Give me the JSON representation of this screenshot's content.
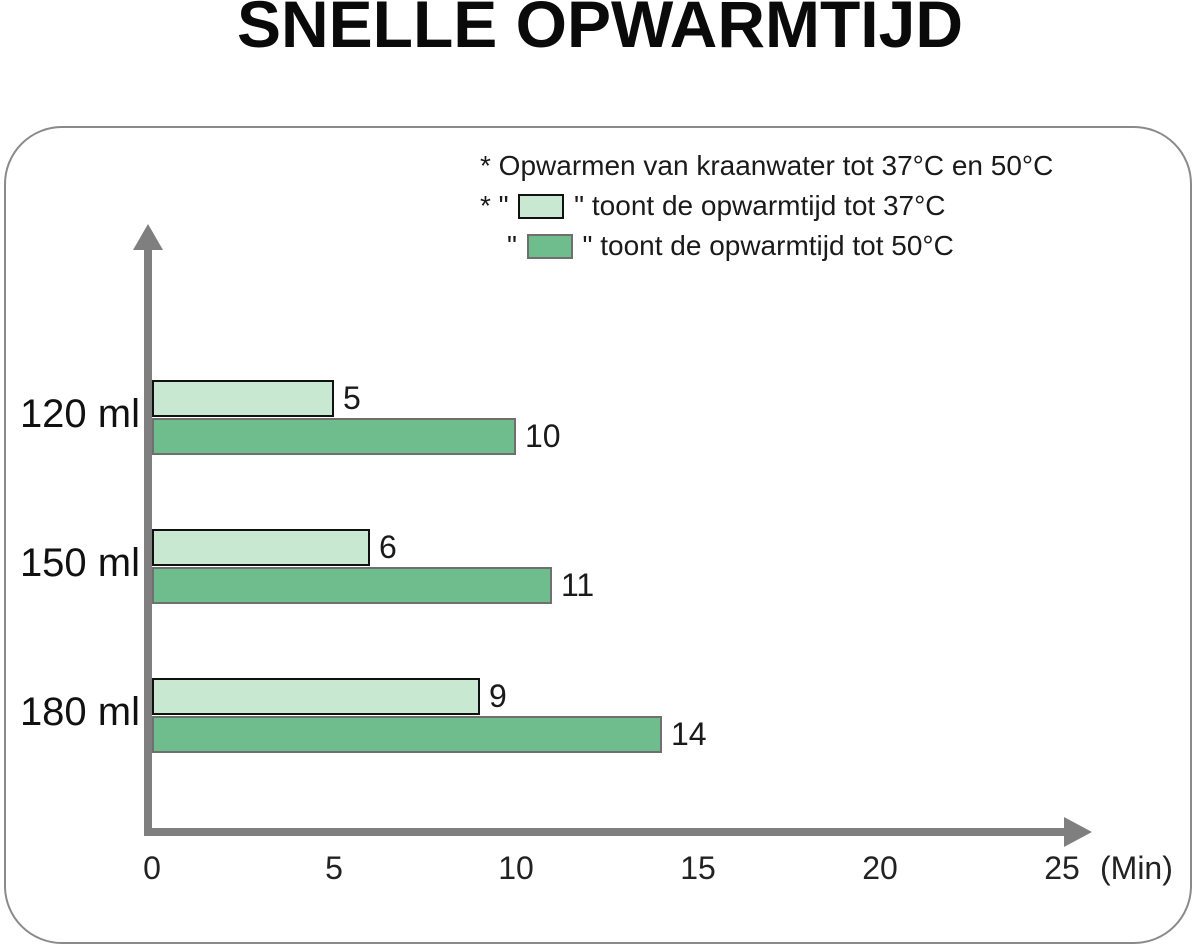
{
  "title": "SNELLE OPWARMTIJD",
  "legend": {
    "note": "* Opwarmen van kraanwater tot 37°C en 50°C",
    "item1_prefix": "* \" ",
    "item1_suffix": " \" toont de opwarmtijd tot 37°C",
    "item2_prefix": "\" ",
    "item2_suffix": " \" toont de opwarmtijd tot 50°C"
  },
  "colors": {
    "axis_gray": "#7f7f7f",
    "card_border": "#8a8a8a",
    "series_37_fill": "#c9e8d1",
    "series_37_border": "#111111",
    "series_50_fill": "#6fbd8d",
    "series_50_border": "#6f6f6f"
  },
  "chart_data": {
    "type": "bar",
    "orientation": "horizontal",
    "title": "SNELLE OPWARMTIJD",
    "categories": [
      "120 ml",
      "150 ml",
      "180 ml"
    ],
    "series": [
      {
        "name": "opwarmtijd tot 37°C",
        "values": [
          5,
          6,
          9
        ],
        "fill": "#c9e8d1",
        "border": "#111111"
      },
      {
        "name": "opwarmtijd tot 50°C",
        "values": [
          10,
          11,
          14
        ],
        "fill": "#6fbd8d",
        "border": "#6f6f6f"
      }
    ],
    "xlim": [
      0,
      25
    ],
    "xticks": [
      0,
      5,
      10,
      15,
      20,
      25
    ],
    "x_unit_label": "(Min)",
    "grid": false,
    "legend_position": "top-right"
  }
}
